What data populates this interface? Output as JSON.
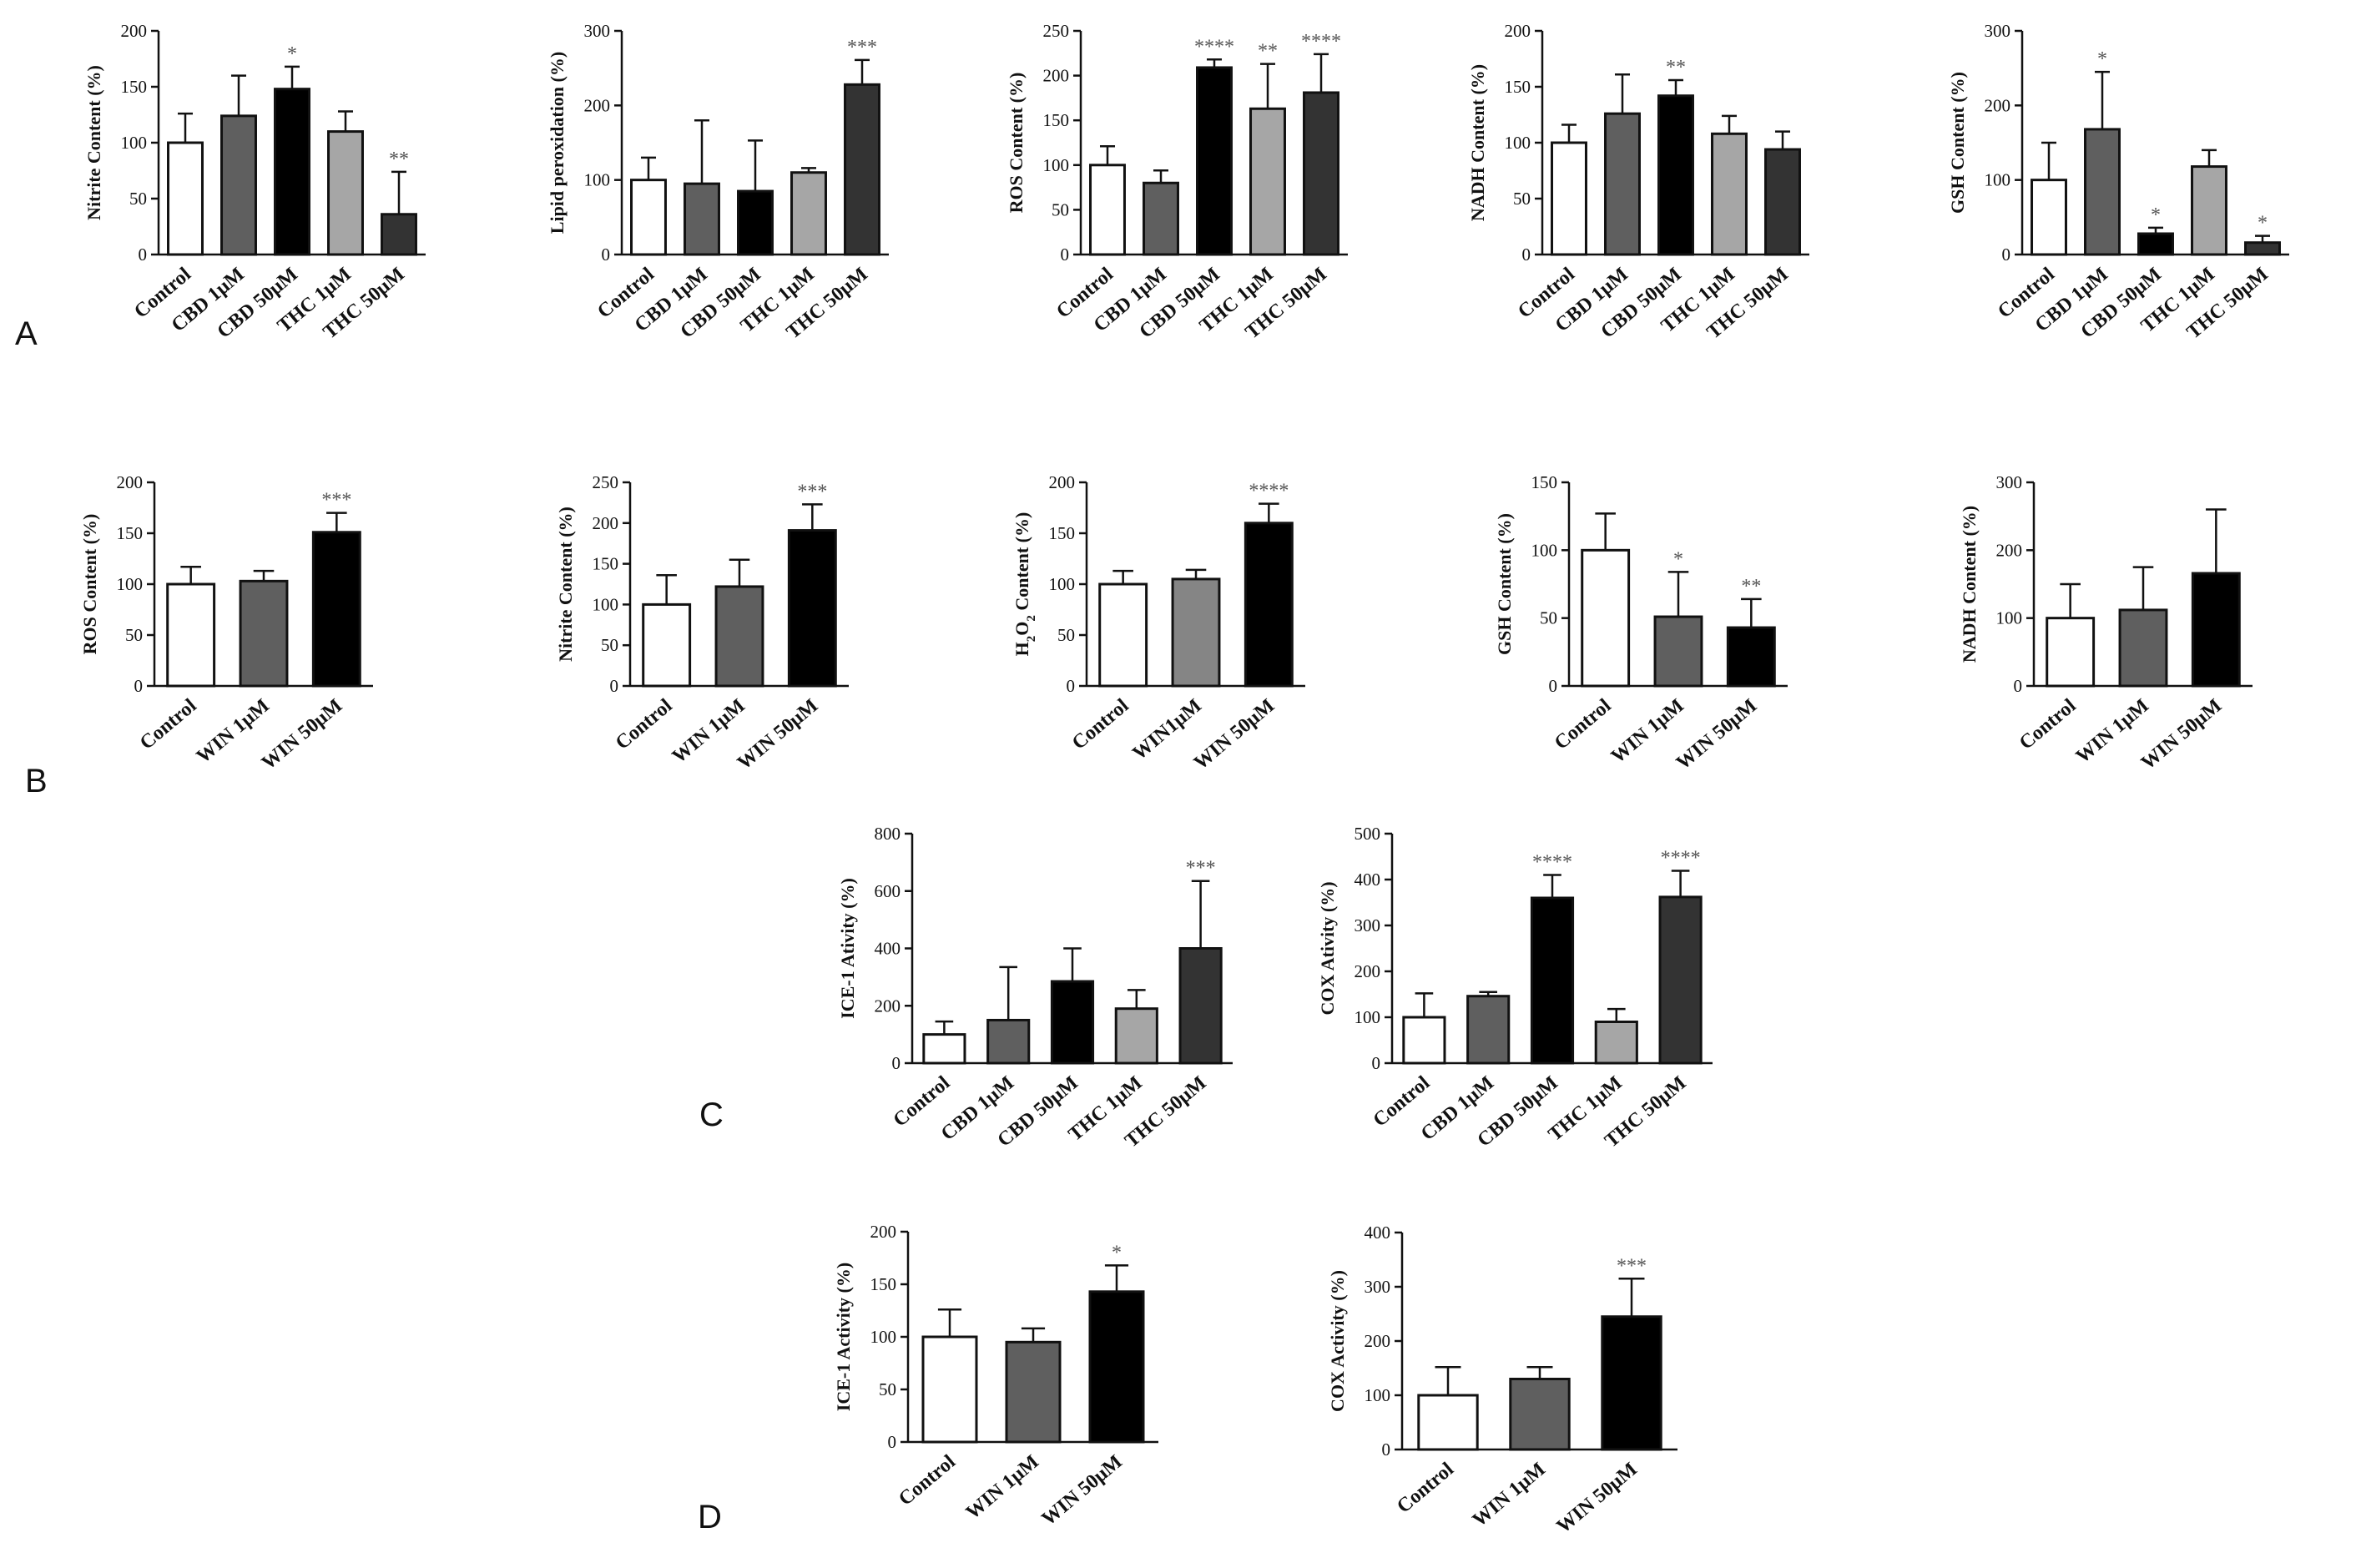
{
  "figure": {
    "panel_labels": [
      "A",
      "B",
      "C",
      "D"
    ]
  },
  "chart_data": [
    {
      "id": "A1",
      "panel": "A",
      "type": "bar",
      "ylabel": "Nitrite Content (%)",
      "ylim": [
        0,
        200
      ],
      "yticks": [
        0,
        50,
        100,
        150,
        200
      ],
      "categories": [
        "Control",
        "CBD 1μM",
        "CBD 50μM",
        "THC 1μM",
        "THC 50μM"
      ],
      "values": [
        100,
        124,
        148,
        110,
        36
      ],
      "errors": [
        26,
        36,
        20,
        18,
        38
      ],
      "significance": [
        "",
        "",
        "*",
        "",
        "**"
      ],
      "colors": [
        "#ffffff",
        "#5f5f5f",
        "#000000",
        "#a6a6a6",
        "#333333"
      ]
    },
    {
      "id": "A2",
      "panel": "A",
      "type": "bar",
      "ylabel": "Lipid peroxidation (%)",
      "ylim": [
        0,
        300
      ],
      "yticks": [
        0,
        100,
        200,
        300
      ],
      "categories": [
        "Control",
        "CBD 1μM",
        "CBD 50μM",
        "THC 1μM",
        "THC 50μM"
      ],
      "values": [
        100,
        95,
        85,
        110,
        228
      ],
      "errors": [
        30,
        85,
        68,
        6,
        33
      ],
      "significance": [
        "",
        "",
        "",
        "",
        "***"
      ],
      "colors": [
        "#ffffff",
        "#5f5f5f",
        "#000000",
        "#a6a6a6",
        "#333333"
      ]
    },
    {
      "id": "A3",
      "panel": "A",
      "type": "bar",
      "ylabel": "ROS Content (%)",
      "ylim": [
        0,
        250
      ],
      "yticks": [
        0,
        50,
        100,
        150,
        200,
        250
      ],
      "categories": [
        "Control",
        "CBD 1μM",
        "CBD 50μM",
        "THC 1μM",
        "THC 50μM"
      ],
      "values": [
        100,
        80,
        209,
        163,
        181
      ],
      "errors": [
        21,
        14,
        9,
        50,
        43
      ],
      "significance": [
        "",
        "",
        "****",
        "**",
        "****"
      ],
      "colors": [
        "#ffffff",
        "#5f5f5f",
        "#000000",
        "#a6a6a6",
        "#333333"
      ]
    },
    {
      "id": "A4",
      "panel": "A",
      "type": "bar",
      "ylabel": "NADH Content (%)",
      "ylim": [
        0,
        200
      ],
      "yticks": [
        0,
        50,
        100,
        150,
        200
      ],
      "categories": [
        "Control",
        "CBD 1μM",
        "CBD 50μM",
        "THC 1μM",
        "THC 50μM"
      ],
      "values": [
        100,
        126,
        142,
        108,
        94
      ],
      "errors": [
        16,
        35,
        14,
        16,
        16
      ],
      "significance": [
        "",
        "",
        "**",
        "",
        ""
      ],
      "colors": [
        "#ffffff",
        "#5f5f5f",
        "#000000",
        "#a6a6a6",
        "#333333"
      ]
    },
    {
      "id": "A5",
      "panel": "A",
      "type": "bar",
      "ylabel": "GSH Content (%)",
      "ylim": [
        0,
        300
      ],
      "yticks": [
        0,
        100,
        200,
        300
      ],
      "categories": [
        "Control",
        "CBD 1μM",
        "CBD 50μM",
        "THC 1μM",
        "THC 50μM"
      ],
      "values": [
        100,
        168,
        28,
        118,
        16
      ],
      "errors": [
        50,
        77,
        8,
        22,
        9
      ],
      "significance": [
        "",
        "*",
        "*",
        "",
        "*"
      ],
      "colors": [
        "#ffffff",
        "#5f5f5f",
        "#000000",
        "#a6a6a6",
        "#333333"
      ]
    },
    {
      "id": "B1",
      "panel": "B",
      "type": "bar",
      "ylabel": "ROS Content (%)",
      "ylim": [
        0,
        200
      ],
      "yticks": [
        0,
        50,
        100,
        150,
        200
      ],
      "categories": [
        "Control",
        "WIN 1μM",
        "WIN 50μM"
      ],
      "values": [
        100,
        103,
        151
      ],
      "errors": [
        17,
        10,
        19
      ],
      "significance": [
        "",
        "",
        "***"
      ],
      "colors": [
        "#ffffff",
        "#5f5f5f",
        "#000000"
      ]
    },
    {
      "id": "B2",
      "panel": "B",
      "type": "bar",
      "ylabel": "Nitrite Content (%)",
      "ylim": [
        0,
        250
      ],
      "yticks": [
        0,
        50,
        100,
        150,
        200,
        250
      ],
      "categories": [
        "Control",
        "WIN 1μM",
        "WIN 50μM"
      ],
      "values": [
        100,
        122,
        191
      ],
      "errors": [
        36,
        33,
        32
      ],
      "significance": [
        "",
        "",
        "***"
      ],
      "colors": [
        "#ffffff",
        "#5f5f5f",
        "#000000"
      ]
    },
    {
      "id": "B3",
      "panel": "B",
      "type": "bar",
      "ylabel": "H2O2 Content (%)",
      "ylim": [
        0,
        200
      ],
      "yticks": [
        0,
        50,
        100,
        150,
        200
      ],
      "categories": [
        "Control",
        "WIN1μM",
        "WIN 50μM"
      ],
      "values": [
        100,
        105,
        160
      ],
      "errors": [
        13,
        9,
        19
      ],
      "significance": [
        "",
        "",
        "****"
      ],
      "colors": [
        "#ffffff",
        "#858585",
        "#000000"
      ]
    },
    {
      "id": "B4",
      "panel": "B",
      "type": "bar",
      "ylabel": "GSH Content (%)",
      "ylim": [
        0,
        150
      ],
      "yticks": [
        0,
        50,
        100,
        150
      ],
      "categories": [
        "Control",
        "WIN 1μM",
        "WIN 50μM"
      ],
      "values": [
        100,
        51,
        43
      ],
      "errors": [
        27,
        33,
        21
      ],
      "significance": [
        "",
        "*",
        "**"
      ],
      "colors": [
        "#ffffff",
        "#5f5f5f",
        "#000000"
      ]
    },
    {
      "id": "B5",
      "panel": "B",
      "type": "bar",
      "ylabel": "NADH Content (%)",
      "ylim": [
        0,
        300
      ],
      "yticks": [
        0,
        100,
        200,
        300
      ],
      "categories": [
        "Control",
        "WIN 1μM",
        "WIN 50μM"
      ],
      "values": [
        100,
        112,
        166
      ],
      "errors": [
        50,
        63,
        94
      ],
      "significance": [
        "",
        "",
        ""
      ],
      "colors": [
        "#ffffff",
        "#5f5f5f",
        "#000000"
      ]
    },
    {
      "id": "C1",
      "panel": "C",
      "type": "bar",
      "ylabel": "ICE-1 Ativity (%)",
      "ylim": [
        0,
        800
      ],
      "yticks": [
        0,
        200,
        400,
        600,
        800
      ],
      "categories": [
        "Control",
        "CBD 1μM",
        "CBD 50μM",
        "THC 1μM",
        "THC 50μM"
      ],
      "values": [
        100,
        150,
        285,
        190,
        400
      ],
      "errors": [
        45,
        185,
        115,
        65,
        235
      ],
      "significance": [
        "",
        "",
        "",
        "",
        "***"
      ],
      "colors": [
        "#ffffff",
        "#5f5f5f",
        "#000000",
        "#a6a6a6",
        "#333333"
      ]
    },
    {
      "id": "C2",
      "panel": "C",
      "type": "bar",
      "ylabel": "COX Ativity (%)",
      "ylim": [
        0,
        500
      ],
      "yticks": [
        0,
        100,
        200,
        300,
        400,
        500
      ],
      "categories": [
        "Control",
        "CBD 1μM",
        "CBD 50μM",
        "THC 1μM",
        "THC 50μM"
      ],
      "values": [
        100,
        146,
        360,
        90,
        362
      ],
      "errors": [
        52,
        9,
        50,
        28,
        57
      ],
      "significance": [
        "",
        "",
        "****",
        "",
        "****"
      ],
      "colors": [
        "#ffffff",
        "#5f5f5f",
        "#000000",
        "#a6a6a6",
        "#333333"
      ]
    },
    {
      "id": "D1",
      "panel": "D",
      "type": "bar",
      "ylabel": "ICE-1 Activity (%)",
      "ylim": [
        0,
        200
      ],
      "yticks": [
        0,
        50,
        100,
        150,
        200
      ],
      "categories": [
        "Control",
        "WIN 1μM",
        "WIN 50μM"
      ],
      "values": [
        100,
        95,
        143
      ],
      "errors": [
        26,
        13,
        25
      ],
      "significance": [
        "",
        "",
        "*"
      ],
      "colors": [
        "#ffffff",
        "#5f5f5f",
        "#000000"
      ]
    },
    {
      "id": "D2",
      "panel": "D",
      "type": "bar",
      "ylabel": "COX Activity (%)",
      "ylim": [
        0,
        400
      ],
      "yticks": [
        0,
        100,
        200,
        300,
        400
      ],
      "categories": [
        "Control",
        "WIN 1μM",
        "WIN 50μM"
      ],
      "values": [
        100,
        130,
        245
      ],
      "errors": [
        52,
        22,
        70
      ],
      "significance": [
        "",
        "",
        "***"
      ],
      "colors": [
        "#ffffff",
        "#5f5f5f",
        "#000000"
      ]
    }
  ]
}
